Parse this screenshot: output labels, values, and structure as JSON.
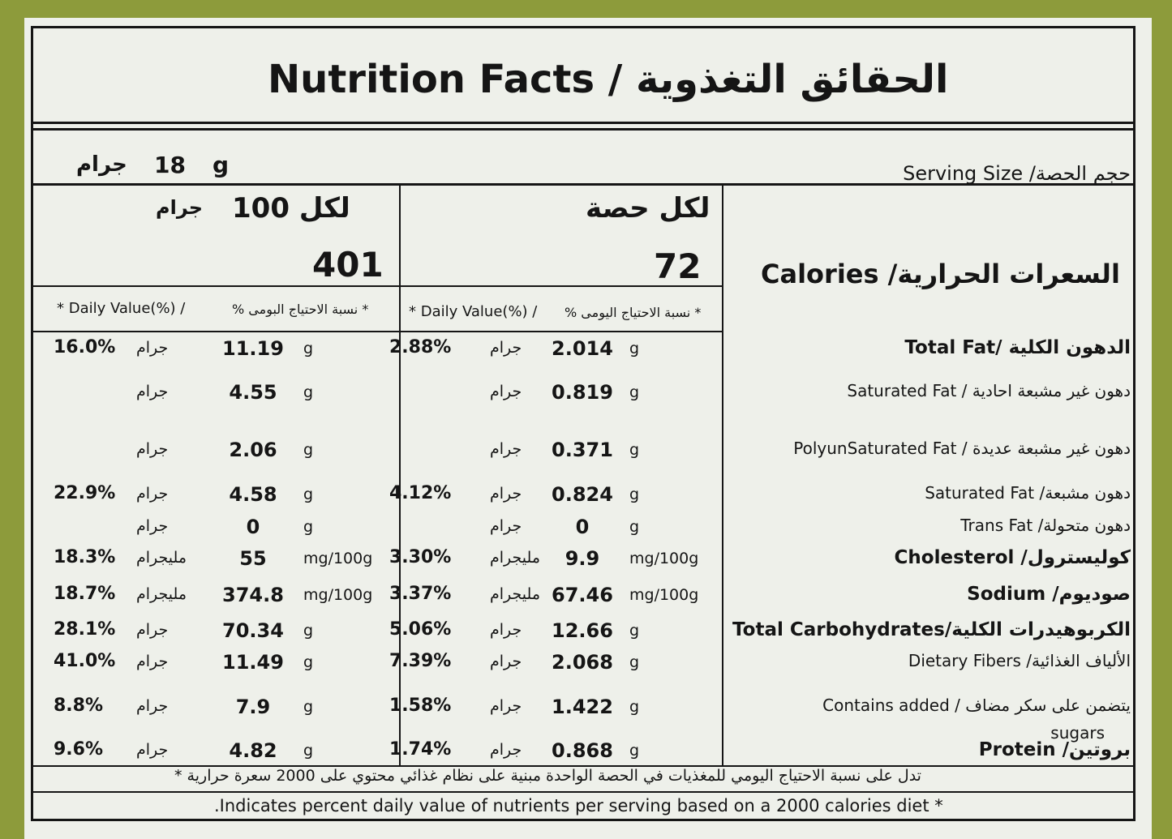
{
  "header": {
    "title": "Nutrition Facts  /  الحقائق التغذوية"
  },
  "serving": {
    "label": "Serving Size /حجم الحصة",
    "amount": "18",
    "unit": "g",
    "unit_ar": "جرام"
  },
  "columns": {
    "per_100": {
      "heading": "لكل 100",
      "heading_unit": "جرام",
      "calories": "401",
      "dv_en": "* Daily Value(%)  /",
      "dv_ar": "% نسبة الاحتياج البومى *"
    },
    "per_serving": {
      "heading": "لكل حصة",
      "calories": "72",
      "dv_en": "* Daily Value(%)  /",
      "dv_ar": "% نسبة الاحتياج اليومى *"
    }
  },
  "calories_label": "Calories /السعرات الحرارية",
  "rows": [
    {
      "label": "Total Fat/ الدهون الكلية",
      "bold": true,
      "per_100": {
        "dv": "16.0%",
        "unit_ar": "جرام",
        "amount": "11.19",
        "unit": "g"
      },
      "per_serving": {
        "dv": "2.88%",
        "unit_ar": "جرام",
        "amount": "2.014",
        "unit": "g"
      }
    },
    {
      "label": "Saturated Fat / دهون غير مشبعة احادية",
      "per_100": {
        "unit_ar": "جرام",
        "amount": "4.55",
        "unit": "g"
      },
      "per_serving": {
        "unit_ar": "جرام",
        "amount": "0.819",
        "unit": "g"
      }
    },
    {
      "label": "PolyunSaturated Fat / دهون غير مشبعة عديدة",
      "per_100": {
        "unit_ar": "جرام",
        "amount": "2.06",
        "unit": "g"
      },
      "per_serving": {
        "unit_ar": "جرام",
        "amount": "0.371",
        "unit": "g"
      }
    },
    {
      "label": "Saturated Fat /دهون مشبعة",
      "per_100": {
        "dv": "22.9%",
        "unit_ar": "جرام",
        "amount": "4.58",
        "unit": "g"
      },
      "per_serving": {
        "dv": "4.12%",
        "unit_ar": "جرام",
        "amount": "0.824",
        "unit": "g"
      }
    },
    {
      "label": "Trans Fat /دهون متحولة",
      "per_100": {
        "unit_ar": "جرام",
        "amount": "0",
        "unit": "g"
      },
      "per_serving": {
        "unit_ar": "جرام",
        "amount": "0",
        "unit": "g"
      }
    },
    {
      "label": "Cholesterol /كوليسترول",
      "bold": true,
      "per_100": {
        "dv": "18.3%",
        "unit_ar": "مليجرام",
        "amount": "55",
        "unit": "mg/100g"
      },
      "per_serving": {
        "dv": "3.30%",
        "unit_ar": "مليجرام",
        "amount": "9.9",
        "unit": "mg/100g"
      }
    },
    {
      "label": "Sodium /صوديوم",
      "bold": true,
      "per_100": {
        "dv": "18.7%",
        "unit_ar": "مليجرام",
        "amount": "374.8",
        "unit": "mg/100g"
      },
      "per_serving": {
        "dv": "3.37%",
        "unit_ar": "مليجرام",
        "amount": "67.46",
        "unit": "mg/100g"
      }
    },
    {
      "label": "Total Carbohydrates/الكربوهيدرات الكلية",
      "bold": true,
      "per_100": {
        "dv": "28.1%",
        "unit_ar": "جرام",
        "amount": "70.34",
        "unit": "g"
      },
      "per_serving": {
        "dv": "5.06%",
        "unit_ar": "جرام",
        "amount": "12.66",
        "unit": "g"
      }
    },
    {
      "label": "Dietary Fibers /الألياف الغذائية",
      "per_100": {
        "dv": "41.0%",
        "unit_ar": "جرام",
        "amount": "11.49",
        "unit": "g"
      },
      "per_serving": {
        "dv": "7.39%",
        "unit_ar": "جرام",
        "amount": "2.068",
        "unit": "g"
      }
    },
    {
      "label": "Contains added / يتضمن على سكر مضاف",
      "label_continued": "sugars",
      "per_100": {
        "dv": "8.8%",
        "unit_ar": "جرام",
        "amount": "7.9",
        "unit": "g"
      },
      "per_serving": {
        "dv": "1.58%",
        "unit_ar": "جرام",
        "amount": "1.422",
        "unit": "g"
      }
    },
    {
      "label": "Protein /بروتين",
      "bold": true,
      "per_100": {
        "dv": "9.6%",
        "unit_ar": "جرام",
        "amount": "4.82",
        "unit": "g"
      },
      "per_serving": {
        "dv": "1.74%",
        "unit_ar": "جرام",
        "amount": "0.868",
        "unit": "g"
      }
    }
  ],
  "footer": {
    "arabic": "* تدل على نسبة الاحتياج اليومي للمغذيات في الحصة الواحدة مبنية على نظام غذائي محتوي على 2000 سعرة حرارية",
    "english": ".Indicates percent daily value of nutrients per serving based on a 2000 calories diet *"
  }
}
